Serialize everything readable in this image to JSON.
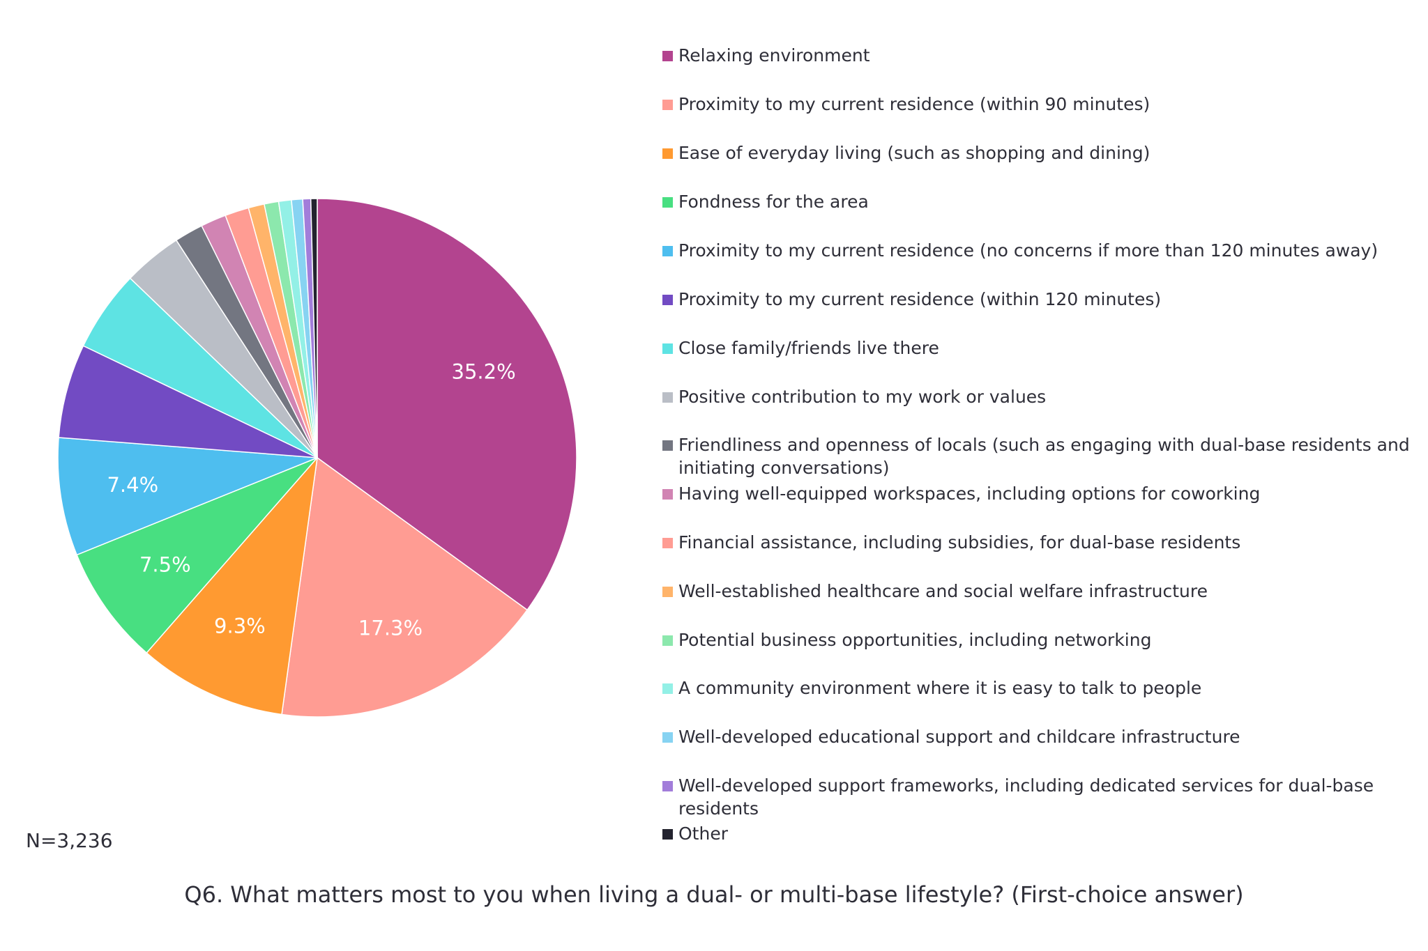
{
  "chart_data": {
    "type": "pie",
    "slices": [
      {
        "name": "Relaxing environment",
        "value": 35.2,
        "label": "35.2%",
        "color": "#b3448f"
      },
      {
        "name": "Proximity to my current residence (within 90 minutes)",
        "value": 17.3,
        "label": "17.3%",
        "color": "#ff9c93"
      },
      {
        "name": "Ease of everyday living (such as shopping and dining)",
        "value": 9.3,
        "label": "9.3%",
        "color": "#ff9a31"
      },
      {
        "name": "Fondness for the area",
        "value": 7.5,
        "label": "7.5%",
        "color": "#48df81"
      },
      {
        "name": "Proximity to my current residence (no concerns if more than 120 minutes away)",
        "value": 7.4,
        "label": "7.4%",
        "color": "#4ebeef"
      },
      {
        "name": "Proximity to my current residence (within 120 minutes)",
        "value": 5.9,
        "label": "",
        "color": "#724bc3"
      },
      {
        "name": "Close family/friends live there",
        "value": 5.1,
        "label": "",
        "color": "#5ee3e3"
      },
      {
        "name": "Positive contribution to my work or values",
        "value": 3.7,
        "label": "",
        "color": "#babec6"
      },
      {
        "name": "Friendliness and openness of locals (such as engaging with dual-base residents and initiating conversations)",
        "value": 1.8,
        "label": "",
        "color": "#737681"
      },
      {
        "name": "Having well-equipped workspaces, including options for coworking",
        "value": 1.6,
        "label": "",
        "color": "#d184b3"
      },
      {
        "name": "Financial assistance, including subsidies, for dual-base residents",
        "value": 1.5,
        "label": "",
        "color": "#ff9c93"
      },
      {
        "name": "Well-established healthcare and social welfare infrastructure",
        "value": 1.0,
        "label": "",
        "color": "#ffb46a"
      },
      {
        "name": "Potential business opportunities, including networking",
        "value": 0.9,
        "label": "",
        "color": "#8ce8ad"
      },
      {
        "name": "A community environment where it is easy to talk to people",
        "value": 0.8,
        "label": "",
        "color": "#93f0e6"
      },
      {
        "name": "Well-developed educational support and childcare infrastructure",
        "value": 0.7,
        "label": "",
        "color": "#87d3f2"
      },
      {
        "name": "Well-developed support frameworks, including dedicated services for dual-base residents",
        "value": 0.5,
        "label": "",
        "color": "#a27dda"
      },
      {
        "name": "Other",
        "value": 0.4,
        "label": "",
        "color": "#23232f"
      }
    ],
    "legend_placement": "right"
  },
  "note": "N=3,236",
  "caption": "Q6. What matters most to you when living a dual- or multi-base lifestyle? (First-choice answer)"
}
